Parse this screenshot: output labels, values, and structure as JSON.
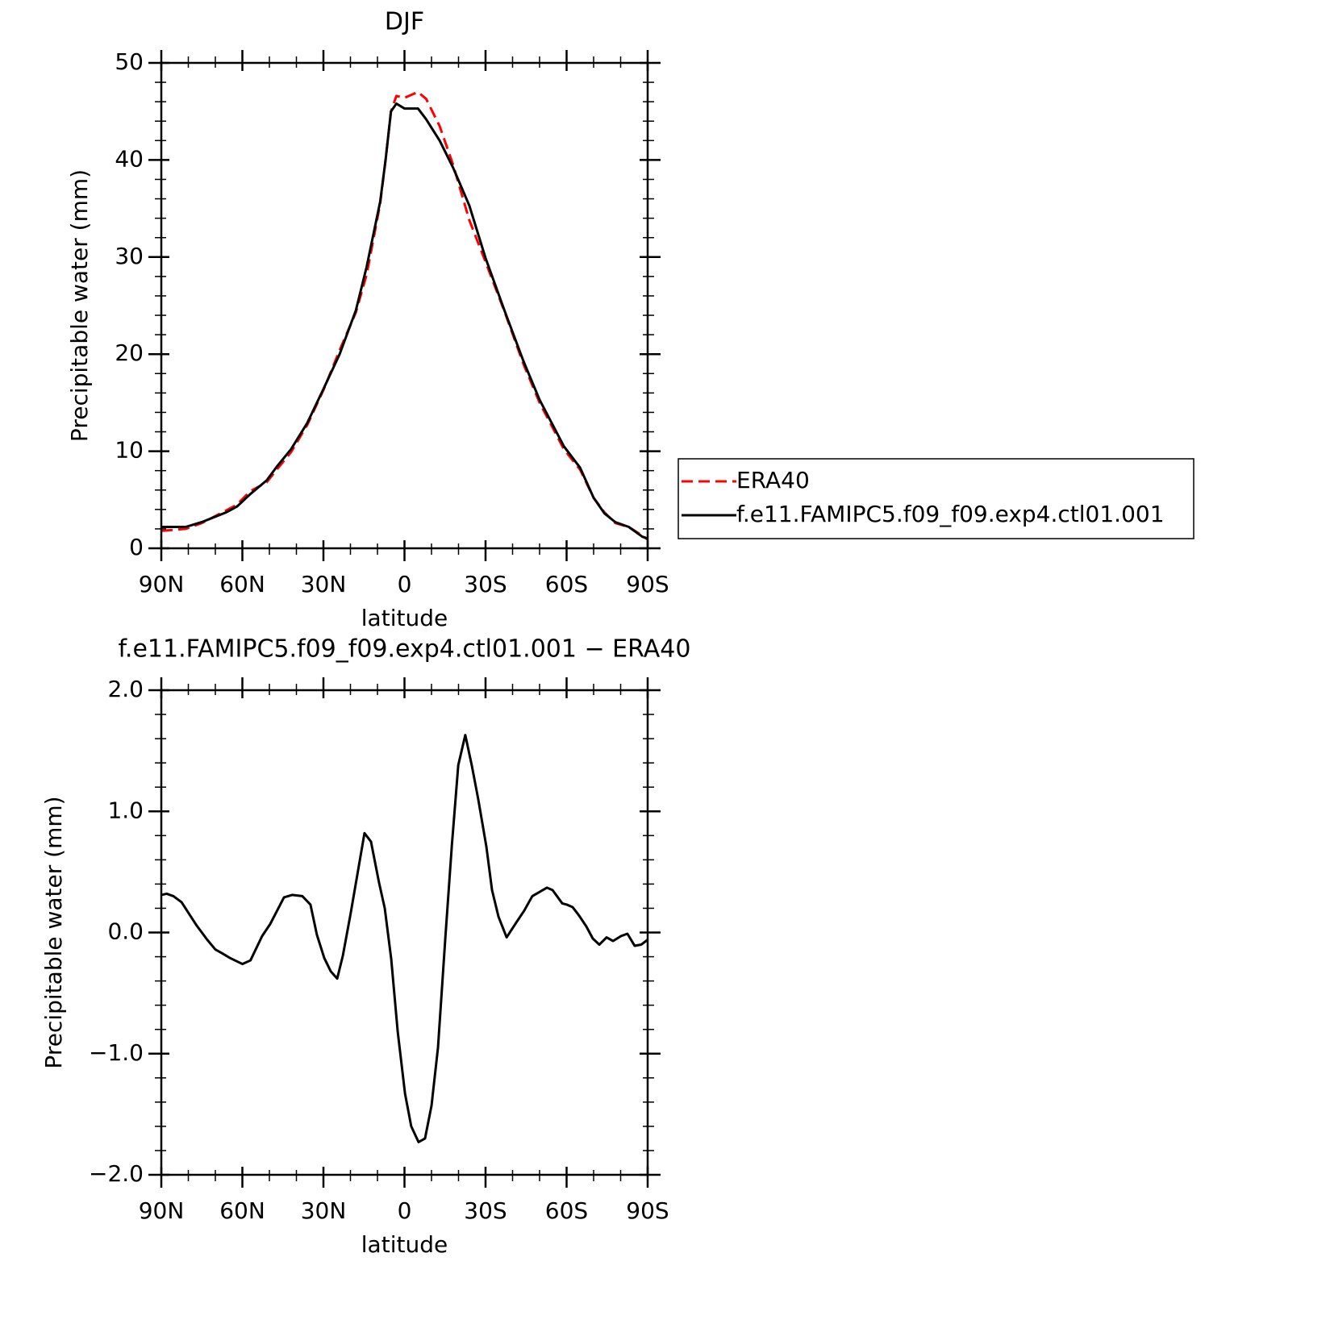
{
  "chart_data": [
    {
      "type": "line",
      "title": "DJF",
      "xlabel": "latitude",
      "ylabel": "Precipitable water (mm)",
      "x": [
        90,
        81,
        75,
        66,
        62,
        57,
        51,
        47,
        42,
        36,
        30,
        24,
        18,
        14,
        9,
        7,
        5,
        3,
        0,
        -5,
        -8,
        -13,
        -18,
        -24,
        -30,
        -37,
        -44,
        -50,
        -59,
        -65,
        -70,
        -74,
        -78,
        -83,
        -88,
        -90
      ],
      "xlim": [
        90,
        -90
      ],
      "xticks": [
        {
          "value": 90,
          "label": "90N"
        },
        {
          "value": 60,
          "label": "60N"
        },
        {
          "value": 30,
          "label": "30N"
        },
        0,
        {
          "value": -30,
          "label": "30S"
        },
        {
          "value": -60,
          "label": "60S"
        },
        {
          "value": -90,
          "label": "90S"
        }
      ],
      "ylim": [
        0,
        50
      ],
      "yticks": [
        0,
        10,
        20,
        30,
        40,
        50
      ],
      "legend": "right",
      "series": [
        {
          "name": "ERA40",
          "color": "#ff0000",
          "dash": "dashed",
          "values": [
            1.8,
            2.0,
            2.6,
            3.9,
            4.5,
            5.9,
            6.8,
            8.2,
            9.9,
            12.7,
            16.3,
            20.4,
            24.3,
            28.2,
            35.5,
            40,
            45,
            46.6,
            46.4,
            47,
            46.3,
            43.5,
            39.5,
            33.8,
            29.5,
            24.4,
            19,
            15,
            10.2,
            8.1,
            5.2,
            3.7,
            2.6,
            2.2,
            1.3,
            0.9
          ]
        },
        {
          "name": "f.e11.FAMIPC5.f09_f09.exp4.ctl01.001",
          "color": "#000000",
          "dash": "solid",
          "values": [
            2.2,
            2.2,
            2.7,
            3.7,
            4.3,
            5.6,
            7.0,
            8.5,
            10.2,
            12.9,
            16.4,
            20,
            24.5,
            29,
            35.7,
            40,
            45,
            45.8,
            45.3,
            45.3,
            44.2,
            42,
            39.2,
            35.3,
            29.9,
            24.5,
            19.3,
            15.3,
            10.5,
            8.3,
            5.2,
            3.6,
            2.7,
            2.2,
            1.2,
            1.0
          ]
        }
      ]
    },
    {
      "type": "line",
      "title": "f.e11.FAMIPC5.f09_f09.exp4.ctl01.001 − ERA40",
      "xlabel": "latitude",
      "ylabel": "Precipitable water (mm)",
      "x": [
        90,
        88,
        85.5,
        82.5,
        77,
        73,
        70,
        67.6,
        64.6,
        60,
        57,
        52.7,
        49.7,
        44.6,
        41.6,
        37.8,
        34.8,
        32.4,
        29.7,
        27.3,
        24.9,
        22.8,
        19.9,
        14.8,
        12.4,
        9.4,
        7.3,
        4.9,
        2.5,
        -0.2,
        -2.5,
        -5.2,
        -7.6,
        -10,
        -12.4,
        -15.1,
        -17.5,
        -19.9,
        -22.5,
        -24.9,
        -27.3,
        -30.3,
        -32.4,
        -34.8,
        -37.8,
        -41.3,
        -44.3,
        -47.3,
        -52.7,
        -54.8,
        -58.4,
        -60.1,
        -62.2,
        -64.6,
        -67.3,
        -69.7,
        -72.1,
        -74.8,
        -77.2,
        -80.1,
        -82.5,
        -85.2,
        -87.6,
        -90
      ],
      "xlim": [
        90,
        -90
      ],
      "xticks": [
        {
          "value": 90,
          "label": "90N"
        },
        {
          "value": 60,
          "label": "60N"
        },
        {
          "value": 30,
          "label": "30N"
        },
        0,
        {
          "value": -30,
          "label": "30S"
        },
        {
          "value": -60,
          "label": "60S"
        },
        {
          "value": -90,
          "label": "90S"
        }
      ],
      "ylim": [
        -2,
        2
      ],
      "yticks": [
        {
          "value": -2,
          "label": "−2.0"
        },
        {
          "value": -1,
          "label": "−1.0"
        },
        {
          "value": 0,
          "label": "0.0"
        },
        {
          "value": 1,
          "label": "1.0"
        },
        {
          "value": 2,
          "label": "2.0"
        }
      ],
      "series": [
        {
          "color": "#000000",
          "dash": "solid",
          "values": [
            0.31,
            0.32,
            0.3,
            0.25,
            0.06,
            -0.06,
            -0.14,
            -0.17,
            -0.21,
            -0.26,
            -0.23,
            -0.03,
            0.07,
            0.29,
            0.31,
            0.3,
            0.23,
            -0.02,
            -0.21,
            -0.32,
            -0.38,
            -0.19,
            0.16,
            0.82,
            0.75,
            0.41,
            0.2,
            -0.22,
            -0.82,
            -1.33,
            -1.6,
            -1.73,
            -1.7,
            -1.43,
            -0.95,
            -0.05,
            0.71,
            1.38,
            1.63,
            1.38,
            1.1,
            0.71,
            0.35,
            0.13,
            -0.04,
            0.08,
            0.18,
            0.3,
            0.37,
            0.35,
            0.24,
            0.23,
            0.21,
            0.14,
            0.05,
            -0.05,
            -0.1,
            -0.04,
            -0.07,
            -0.03,
            -0.01,
            -0.11,
            -0.1,
            -0.06
          ]
        }
      ]
    }
  ]
}
